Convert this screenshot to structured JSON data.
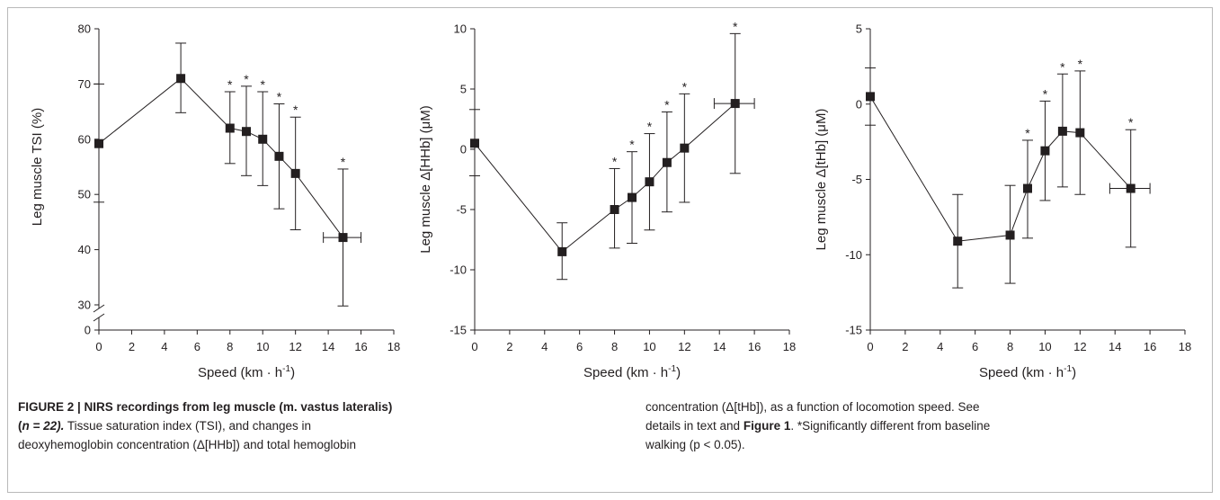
{
  "figure": {
    "caption": {
      "label": "FIGURE 2 | NIRS recordings from leg muscle (m. vastus lateralis)",
      "n_open": "(",
      "n_value": "n = 22).",
      "line1_rest": "Tissue saturation index (TSI), and changes in",
      "line2": "deoxyhemoglobin concentration (Δ[HHb]) and total hemoglobin",
      "line3": "concentration (Δ[tHb]), as a function of locomotion speed. See",
      "line4_pre": "details in text and ",
      "line4_bold": "Figure 1",
      "line4_post": ". *Significantly different from baseline",
      "line5": "walking (p < 0.05)."
    }
  },
  "chart_data": [
    {
      "type": "line",
      "xlabel": "Speed (km · h",
      "xlabel_sup": "-1",
      "xlabel_close": ")",
      "ylabel": "Leg muscle TSI (%)",
      "xlim": [
        0,
        18
      ],
      "ylim": [
        30,
        80
      ],
      "y_axis_break": true,
      "x_ticks": [
        "0",
        "2",
        "4",
        "6",
        "8",
        "10",
        "12",
        "14",
        "16",
        "18"
      ],
      "y_ticks": [
        "30",
        "40",
        "50",
        "60",
        "70",
        "80"
      ],
      "y_break_label": "0",
      "series": [
        {
          "points": [
            {
              "x": 0,
              "y": 59.2,
              "err_lo": 48.6,
              "err_hi": 70.0,
              "sig": false
            },
            {
              "x": 5,
              "y": 71.0,
              "err_lo": 64.8,
              "err_hi": 77.4,
              "sig": false
            },
            {
              "x": 8,
              "y": 62.0,
              "err_lo": 55.6,
              "err_hi": 68.6,
              "sig": true
            },
            {
              "x": 9,
              "y": 61.4,
              "err_lo": 53.4,
              "err_hi": 69.6,
              "sig": true
            },
            {
              "x": 10,
              "y": 60.0,
              "err_lo": 51.6,
              "err_hi": 68.6,
              "sig": true
            },
            {
              "x": 11,
              "y": 56.9,
              "err_lo": 47.4,
              "err_hi": 66.4,
              "sig": true
            },
            {
              "x": 12,
              "y": 53.8,
              "err_lo": 43.6,
              "err_hi": 64.0,
              "sig": true
            },
            {
              "x": 14.9,
              "y": 42.2,
              "err_lo": 29.8,
              "err_hi": 54.6,
              "sig": true,
              "xerr": [
                13.7,
                16.0
              ]
            }
          ]
        }
      ]
    },
    {
      "type": "line",
      "xlabel": "Speed (km · h",
      "xlabel_sup": "-1",
      "xlabel_close": ")",
      "ylabel": "Leg muscle Δ[HHb] (μM)",
      "xlim": [
        0,
        18
      ],
      "ylim": [
        -15,
        10
      ],
      "x_ticks": [
        "0",
        "2",
        "4",
        "6",
        "8",
        "10",
        "12",
        "14",
        "16",
        "18"
      ],
      "y_ticks": [
        "-15",
        "-10",
        "-5",
        "0",
        "5",
        "10"
      ],
      "series": [
        {
          "points": [
            {
              "x": 0,
              "y": 0.5,
              "err_lo": -2.2,
              "err_hi": 3.3,
              "sig": false
            },
            {
              "x": 5,
              "y": -8.5,
              "err_lo": -10.8,
              "err_hi": -6.1,
              "sig": false
            },
            {
              "x": 8,
              "y": -5.0,
              "err_lo": -8.2,
              "err_hi": -1.6,
              "sig": true
            },
            {
              "x": 9,
              "y": -4.0,
              "err_lo": -7.8,
              "err_hi": -0.2,
              "sig": true
            },
            {
              "x": 10,
              "y": -2.7,
              "err_lo": -6.7,
              "err_hi": 1.3,
              "sig": true
            },
            {
              "x": 11,
              "y": -1.1,
              "err_lo": -5.2,
              "err_hi": 3.1,
              "sig": true
            },
            {
              "x": 12,
              "y": 0.1,
              "err_lo": -4.4,
              "err_hi": 4.6,
              "sig": true
            },
            {
              "x": 14.9,
              "y": 3.8,
              "err_lo": -2.0,
              "err_hi": 9.6,
              "sig": true,
              "xerr": [
                13.7,
                16.0
              ]
            }
          ]
        }
      ]
    },
    {
      "type": "line",
      "xlabel": "Speed (km · h",
      "xlabel_sup": "-1",
      "xlabel_close": ")",
      "ylabel": "Leg muscle Δ[tHb] (μM)",
      "xlim": [
        0,
        18
      ],
      "ylim": [
        -15,
        5
      ],
      "x_ticks": [
        "0",
        "2",
        "4",
        "6",
        "8",
        "10",
        "12",
        "14",
        "16",
        "18"
      ],
      "y_ticks": [
        "-15",
        "-10",
        "-5",
        "0",
        "5"
      ],
      "series": [
        {
          "points": [
            {
              "x": 0,
              "y": 0.5,
              "err_lo": -1.4,
              "err_hi": 2.4,
              "sig": false
            },
            {
              "x": 5,
              "y": -9.1,
              "err_lo": -12.2,
              "err_hi": -6.0,
              "sig": false
            },
            {
              "x": 8,
              "y": -8.7,
              "err_lo": -11.9,
              "err_hi": -5.4,
              "sig": false
            },
            {
              "x": 9,
              "y": -5.6,
              "err_lo": -8.9,
              "err_hi": -2.4,
              "sig": true
            },
            {
              "x": 10,
              "y": -3.1,
              "err_lo": -6.4,
              "err_hi": 0.2,
              "sig": true
            },
            {
              "x": 11,
              "y": -1.8,
              "err_lo": -5.5,
              "err_hi": 2.0,
              "sig": true
            },
            {
              "x": 12,
              "y": -1.9,
              "err_lo": -6.0,
              "err_hi": 2.2,
              "sig": true
            },
            {
              "x": 14.9,
              "y": -5.6,
              "err_lo": -9.5,
              "err_hi": -1.7,
              "sig": true,
              "xerr": [
                13.7,
                16.0
              ]
            }
          ]
        }
      ]
    }
  ]
}
